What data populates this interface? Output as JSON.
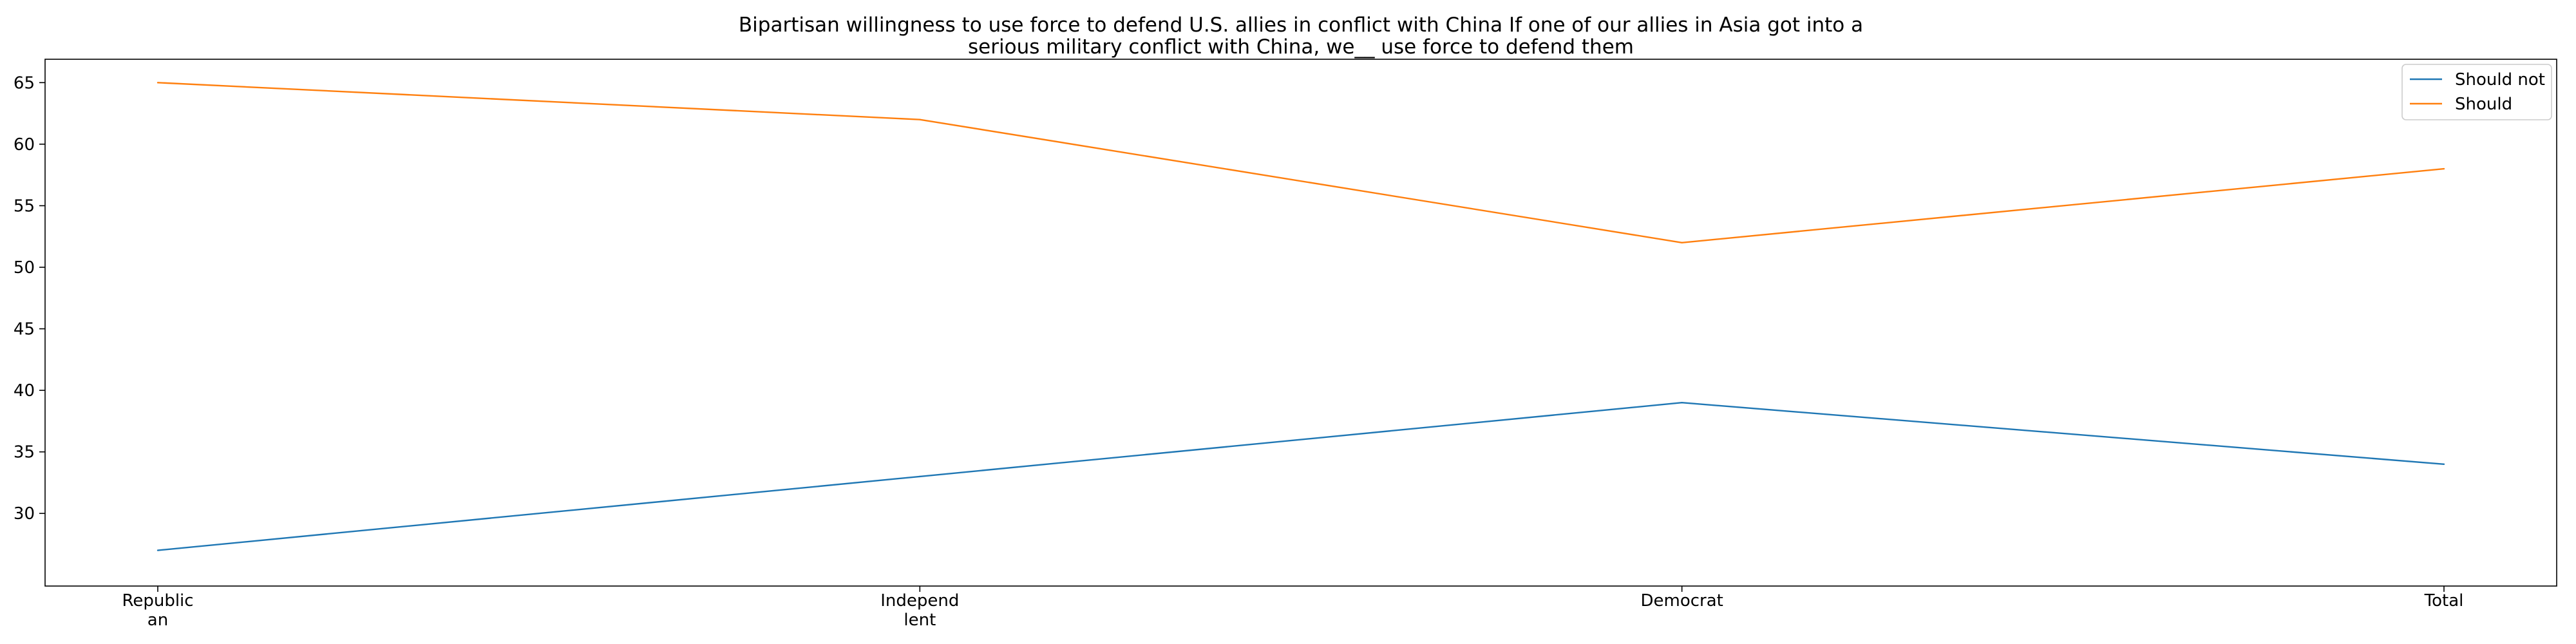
{
  "chart_data": {
    "type": "line",
    "title_lines": [
      "Bipartisan willingness to use force to defend U.S. allies in conflict with China If one of our allies in Asia got into a",
      "serious military conflict with China, we__ use force to defend them"
    ],
    "categories": [
      [
        "Republic",
        "an"
      ],
      [
        "Independ",
        "lent"
      ],
      [
        "Democrat"
      ],
      [
        "Total"
      ]
    ],
    "series": [
      {
        "name": "Should not",
        "color": "#1f77b4",
        "values": [
          27,
          33,
          39,
          34
        ]
      },
      {
        "name": "Should",
        "color": "#ff7f0e",
        "values": [
          65,
          62,
          52,
          58
        ]
      }
    ],
    "y_ticks": [
      30,
      35,
      40,
      45,
      50,
      55,
      60,
      65
    ],
    "ylim": [
      24.1,
      66.9
    ],
    "xlabel": "",
    "ylabel": "",
    "grid": false,
    "legend_position": "top-right"
  }
}
